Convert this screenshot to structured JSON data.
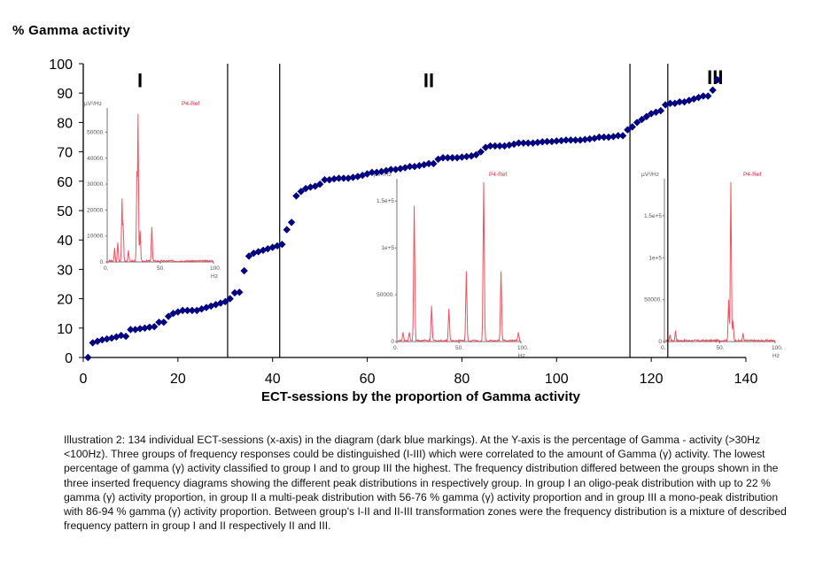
{
  "chart_data": {
    "type": "scatter",
    "title": "",
    "ylabel": "% Gamma activity",
    "xlabel": "ECT-sessions by the proportion of Gamma activity",
    "xlim": [
      0,
      140
    ],
    "ylim": [
      0,
      100
    ],
    "x_ticks": [
      "0",
      "20",
      "40",
      "60",
      "80",
      "100",
      "120",
      "140"
    ],
    "y_ticks": [
      "0",
      "10",
      "20",
      "30",
      "40",
      "50",
      "60",
      "70",
      "80",
      "90",
      "100"
    ],
    "grid": false,
    "marker_color": "#000080",
    "series": [
      {
        "name": "ECT-sessions",
        "y": [
          0,
          5,
          5.5,
          6,
          6.3,
          6.6,
          7,
          7.5,
          7.2,
          9.5,
          9.5,
          9.8,
          10,
          10.3,
          10.5,
          12,
          12,
          14,
          15,
          15.5,
          16,
          16,
          16,
          16,
          16.5,
          17,
          17.5,
          18,
          18.5,
          19,
          20,
          22,
          22.2,
          29.5,
          34.5,
          35.5,
          36,
          36.5,
          37,
          37.5,
          38,
          38.5,
          43.5,
          46,
          55,
          56.5,
          57.5,
          58,
          58.3,
          59,
          60.5,
          60.5,
          60.8,
          61,
          61,
          61,
          61.3,
          61.6,
          62,
          62.5,
          63,
          63,
          63.3,
          63.6,
          64,
          64,
          64.3,
          64.6,
          65,
          65,
          65.3,
          65.6,
          66,
          66,
          67.5,
          68,
          68,
          68,
          68,
          68.2,
          68.4,
          68.6,
          69,
          70,
          71.5,
          72,
          72,
          72,
          72,
          72.3,
          72.6,
          73,
          73,
          73,
          73,
          73.2,
          73.4,
          73.5,
          73.5,
          73.7,
          73.8,
          74,
          74,
          74,
          74,
          74.2,
          74.4,
          74.6,
          75,
          75,
          75,
          75.2,
          75.5,
          75.5,
          77.5,
          78.5,
          80,
          81,
          82,
          83,
          83.5,
          84,
          86,
          86.5,
          86.5,
          87,
          87,
          87.5,
          88,
          88.5,
          89,
          89,
          91,
          94.5
        ]
      }
    ],
    "group_labels": [
      "I",
      "II",
      "III"
    ],
    "group_boundaries": [
      30.5,
      41.5,
      115.5,
      123.5
    ],
    "insets": [
      {
        "type": "line",
        "group": "I",
        "ylabel": "µV²/Hz",
        "xlabel": "Hz",
        "legend": "P4-Ref",
        "x_ticks": [
          "0.",
          "50.",
          "100."
        ],
        "y_ticks": [
          "0.",
          "10000.",
          "20000.",
          "30000.",
          "40000.",
          "50000."
        ],
        "ylim": [
          0,
          58000
        ],
        "color": "#ee3344",
        "peaks": [
          [
            7,
            5500
          ],
          [
            10,
            7500
          ],
          [
            14,
            24500
          ],
          [
            15,
            15000
          ],
          [
            20,
            4500
          ],
          [
            28,
            35000
          ],
          [
            29,
            57000
          ],
          [
            31,
            12000
          ],
          [
            42,
            13500
          ]
        ]
      },
      {
        "type": "line",
        "group": "II",
        "ylabel": "µV²/Hz",
        "xlabel": "Hz",
        "legend": "P4-Ref",
        "x_ticks": [
          "0.",
          "50.",
          "100."
        ],
        "y_ticks": [
          "0",
          "50000.",
          "1e+5",
          "1.5e+5"
        ],
        "ylim": [
          0,
          170000
        ],
        "color": "#ee3344",
        "peaks": [
          [
            5,
            10000
          ],
          [
            10,
            10000
          ],
          [
            14,
            145000
          ],
          [
            28,
            38000
          ],
          [
            42,
            35000
          ],
          [
            56,
            75000
          ],
          [
            70,
            170000
          ],
          [
            84,
            75000
          ],
          [
            98,
            10000
          ]
        ]
      },
      {
        "type": "line",
        "group": "III",
        "ylabel": "µV²/Hz",
        "xlabel": "Hz",
        "legend": "P4-Ref",
        "x_ticks": [
          "0.",
          "50.",
          "100."
        ],
        "y_ticks": [
          "0",
          "50000.",
          "1e+5",
          "1.5e+5"
        ],
        "ylim": [
          0,
          190000
        ],
        "color": "#ee3344",
        "peaks": [
          [
            5,
            8000
          ],
          [
            10,
            13000
          ],
          [
            58,
            50000
          ],
          [
            60,
            190000
          ],
          [
            62,
            25000
          ],
          [
            71,
            10000
          ]
        ]
      }
    ]
  },
  "caption": "Illustration 2: 134 individual ECT-sessions (x-axis) in the diagram (dark blue markings). At the Y-axis is the percentage of Gamma - activity (>30Hz <100Hz). Three groups of frequency responses could be distinguished (I-III) which were correlated to the amount of Gamma (γ) activity. The lowest percentage of gamma (γ) activity classified to group I and to group III the highest. The frequency distribution differed between the groups shown in the three inserted frequency diagrams showing the different peak distributions in respectively group. In group I an oligo-peak distribution with up to 22 % gamma (γ) activity proportion, in group II a multi-peak distribution with 56-76 % gamma (γ) activity proportion and in group III a mono-peak distribution with 86-94 % gamma (γ) activity proportion. Between group's I-II and II-III transformation zones were the frequency distribution is a mixture of described frequency pattern in group I and II respectively II and III."
}
